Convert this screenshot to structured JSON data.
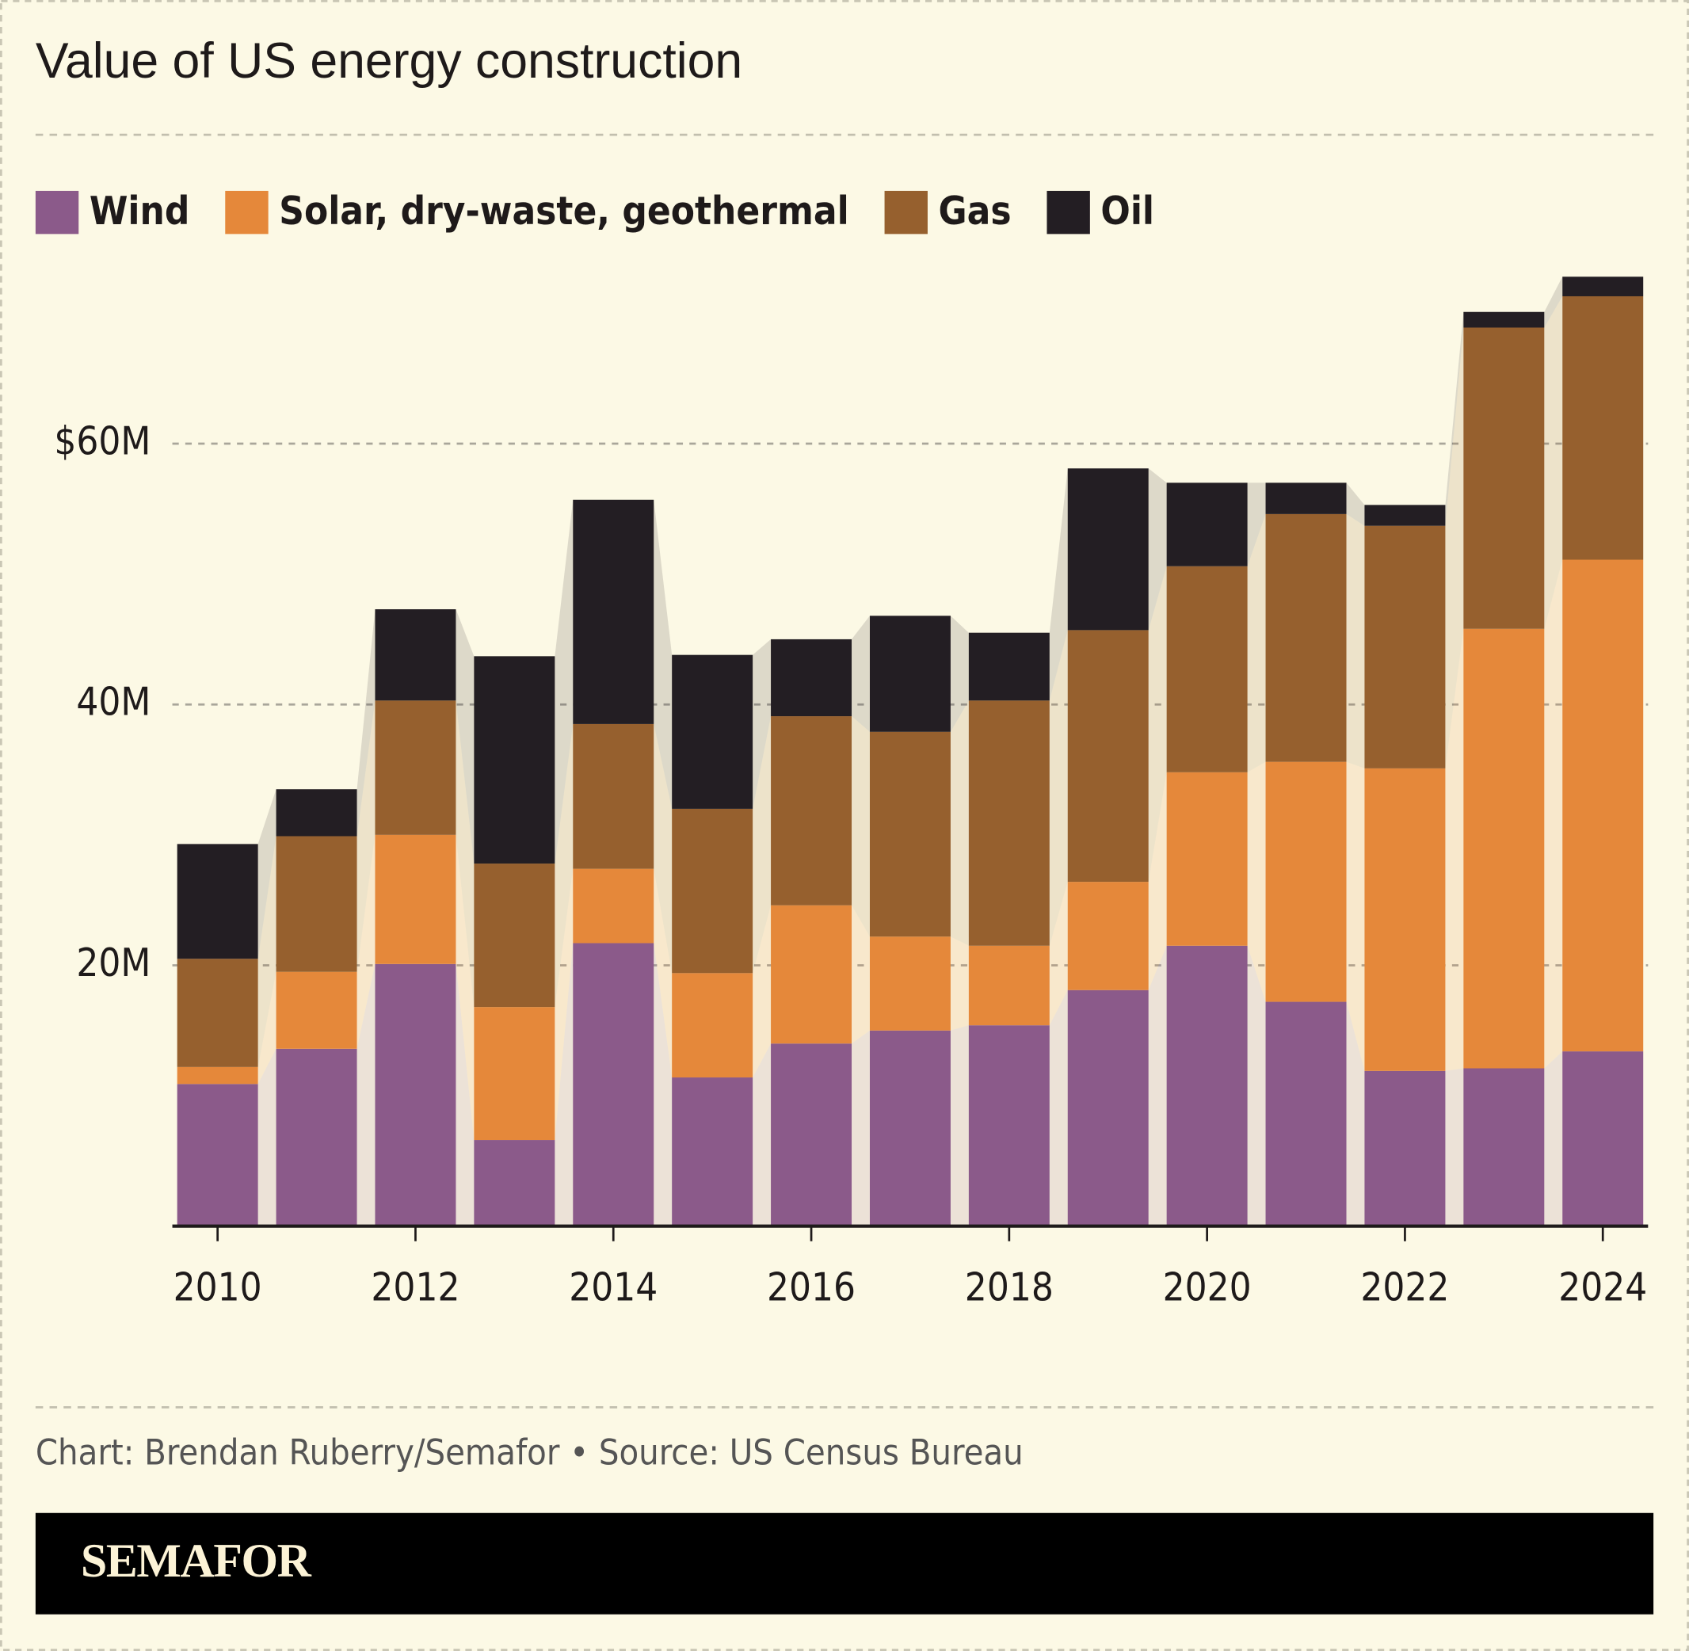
{
  "title": "Value of US energy construction",
  "source": "Chart: Brendan Ruberry/Semafor • Source: US Census Bureau",
  "brand": "SEMAFOR",
  "chart_data": {
    "type": "stacked_bar",
    "categories": [
      "2010",
      null,
      "2012",
      null,
      "2014",
      null,
      "2016",
      null,
      "2018",
      null,
      "2020",
      null,
      "2022",
      null,
      "2024"
    ],
    "series": [
      {
        "name": "Wind",
        "color": "#8b5a8a",
        "values": [
          10.9,
          13.6,
          20.1,
          6.6,
          21.7,
          11.4,
          14.0,
          15.0,
          15.4,
          18.1,
          21.5,
          17.2,
          11.9,
          12.1,
          13.4
        ]
      },
      {
        "name": "Solar, dry-waste, geothermal",
        "color": "#e5883a",
        "values": [
          1.3,
          5.9,
          9.9,
          10.2,
          5.7,
          8.0,
          10.6,
          7.2,
          6.1,
          8.3,
          13.3,
          18.4,
          23.2,
          33.7,
          37.7
        ]
      },
      {
        "name": "Gas",
        "color": "#96602e",
        "values": [
          8.3,
          10.4,
          10.3,
          11.0,
          11.1,
          12.6,
          14.5,
          15.7,
          18.8,
          19.3,
          15.8,
          19.0,
          18.6,
          23.1,
          20.2
        ]
      },
      {
        "name": "Oil",
        "color": "#231e23",
        "values": [
          8.8,
          3.6,
          7.0,
          15.9,
          17.2,
          11.8,
          5.9,
          8.9,
          5.2,
          12.4,
          6.4,
          2.4,
          1.6,
          1.2,
          1.5
        ]
      }
    ],
    "ylim": [
      0,
      75
    ],
    "yticks": [
      {
        "value": 20,
        "label": "20M"
      },
      {
        "value": 40,
        "label": "40M"
      },
      {
        "value": 60,
        "label": "$60M"
      }
    ],
    "grid": true
  }
}
